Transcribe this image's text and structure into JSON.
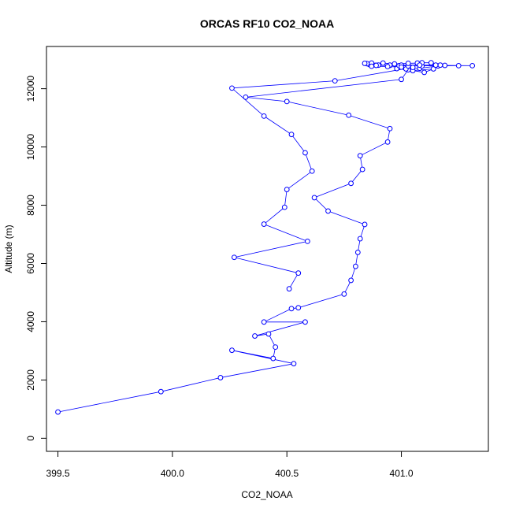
{
  "chart_data": {
    "type": "line",
    "title": "ORCAS RF10 CO2_NOAA",
    "xlabel": "CO2_NOAA",
    "ylabel": "Altitude (m)",
    "xlim": [
      399.45,
      401.38
    ],
    "ylim": [
      -450,
      13450
    ],
    "xticks": [
      399.5,
      400.0,
      400.5,
      401.0
    ],
    "yticks": [
      0,
      2000,
      4000,
      6000,
      8000,
      10000,
      12000
    ],
    "grid": false,
    "marker": "open-circle",
    "series": [
      {
        "color": "#0000ff",
        "points": [
          [
            399.5,
            900
          ],
          [
            399.95,
            1600
          ],
          [
            400.21,
            2080
          ],
          [
            400.53,
            2560
          ],
          [
            400.26,
            3020
          ],
          [
            400.44,
            2740
          ],
          [
            400.45,
            3130
          ],
          [
            400.42,
            3580
          ],
          [
            400.36,
            3510
          ],
          [
            400.58,
            3990
          ],
          [
            400.4,
            3990
          ],
          [
            400.52,
            4450
          ],
          [
            400.55,
            4480
          ],
          [
            400.75,
            4950
          ],
          [
            400.78,
            5420
          ],
          [
            400.8,
            5900
          ],
          [
            400.81,
            6380
          ],
          [
            400.82,
            6850
          ],
          [
            400.84,
            7340
          ],
          [
            400.68,
            7800
          ],
          [
            400.62,
            8260
          ],
          [
            400.78,
            8750
          ],
          [
            400.83,
            9230
          ],
          [
            400.82,
            9700
          ],
          [
            400.94,
            10170
          ],
          [
            400.95,
            10630
          ],
          [
            400.77,
            11090
          ],
          [
            400.5,
            11560
          ],
          [
            400.32,
            11710
          ],
          [
            401.0,
            12320
          ],
          [
            401.03,
            12650
          ],
          [
            401.1,
            12560
          ],
          [
            401.14,
            12680
          ],
          [
            401.05,
            12620
          ],
          [
            400.98,
            12690
          ],
          [
            401.02,
            12680
          ],
          [
            401.08,
            12700
          ],
          [
            401.16,
            12780
          ],
          [
            401.25,
            12790
          ],
          [
            401.31,
            12790
          ],
          [
            401.19,
            12800
          ],
          [
            401.09,
            12780
          ],
          [
            401.03,
            12780
          ],
          [
            400.99,
            12790
          ],
          [
            400.95,
            12800
          ],
          [
            400.9,
            12810
          ],
          [
            400.86,
            12830
          ],
          [
            400.85,
            12860
          ],
          [
            400.84,
            12870
          ],
          [
            400.87,
            12880
          ],
          [
            400.92,
            12880
          ],
          [
            400.97,
            12850
          ],
          [
            401.03,
            12870
          ],
          [
            401.07,
            12880
          ],
          [
            401.09,
            12890
          ],
          [
            401.13,
            12890
          ],
          [
            401.17,
            12810
          ],
          [
            401.15,
            12810
          ],
          [
            401.08,
            12810
          ],
          [
            401.0,
            12810
          ],
          [
            400.95,
            12810
          ],
          [
            400.89,
            12800
          ],
          [
            400.87,
            12770
          ],
          [
            400.94,
            12760
          ],
          [
            401.0,
            12740
          ],
          [
            401.05,
            12730
          ],
          [
            400.71,
            12270
          ],
          [
            400.26,
            12020
          ],
          [
            400.4,
            11060
          ],
          [
            400.52,
            10430
          ],
          [
            400.58,
            9800
          ],
          [
            400.61,
            9170
          ],
          [
            400.5,
            8540
          ],
          [
            400.49,
            7930
          ],
          [
            400.4,
            7350
          ],
          [
            400.59,
            6760
          ],
          [
            400.27,
            6210
          ],
          [
            400.55,
            5670
          ],
          [
            400.51,
            5130
          ]
        ]
      }
    ]
  }
}
